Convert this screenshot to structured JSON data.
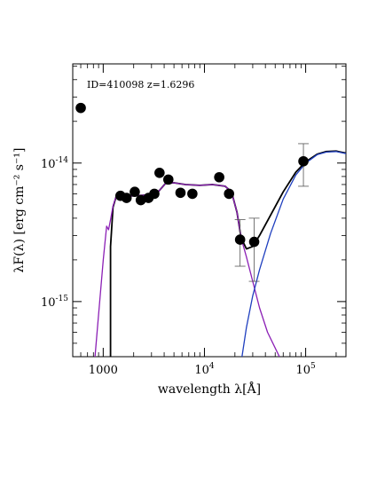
{
  "chart_data": {
    "type": "scatter",
    "annotation": "ID=410098 z=1.6296",
    "xlabel": "wavelength λ[Å]",
    "ylabel": "λF(λ) [erg cm⁻² s⁻¹]",
    "x_scale": "log",
    "y_scale": "log",
    "xlim": [
      500,
      250000
    ],
    "ylim": [
      4e-16,
      5.2e-14
    ],
    "grid": false,
    "x_ticks": [
      {
        "value": 1000,
        "label": "1000"
      },
      {
        "value": 10000,
        "label": "10",
        "exp": "4"
      },
      {
        "value": 100000,
        "label": "10",
        "exp": "5"
      }
    ],
    "y_ticks": [
      {
        "value": 1e-15,
        "label": "10",
        "exp": "-15"
      },
      {
        "value": 1e-14,
        "label": "10",
        "exp": "-14"
      }
    ],
    "points": [
      {
        "x": 600,
        "y": 2.5e-14
      },
      {
        "x": 1480,
        "y": 5.8e-15
      },
      {
        "x": 1700,
        "y": 5.6e-15
      },
      {
        "x": 2050,
        "y": 6.2e-15
      },
      {
        "x": 2350,
        "y": 5.4e-15
      },
      {
        "x": 2800,
        "y": 5.6e-15
      },
      {
        "x": 3200,
        "y": 6e-15
      },
      {
        "x": 3600,
        "y": 8.5e-15
      },
      {
        "x": 4400,
        "y": 7.6e-15
      },
      {
        "x": 5800,
        "y": 6.1e-15
      },
      {
        "x": 7600,
        "y": 6e-15
      },
      {
        "x": 14000,
        "y": 7.9e-15
      },
      {
        "x": 17500,
        "y": 6e-15
      },
      {
        "x": 22500,
        "y": 2.8e-15,
        "err_lo": 1.8e-15,
        "err_hi": 3.9e-15
      },
      {
        "x": 31000,
        "y": 2.7e-15,
        "err_lo": 1.4e-15,
        "err_hi": 4e-15
      },
      {
        "x": 95000,
        "y": 1.03e-14,
        "err_lo": 6.8e-15,
        "err_hi": 1.38e-14
      }
    ],
    "series": [
      {
        "color": "#000000",
        "x": [
          1180,
          1180,
          1250,
          1350,
          1500,
          2000,
          3000,
          3500,
          4100,
          5000,
          6500,
          9000,
          12000,
          16000,
          18500,
          21000,
          23000,
          26000,
          30000,
          35000,
          45000,
          60000,
          80000,
          100000,
          130000,
          160000,
          200000,
          250000
        ],
        "y": [
          4e-16,
          2.5e-15,
          4.8e-15,
          5.8e-15,
          5.7e-15,
          5.8e-15,
          5.9e-15,
          6.2e-15,
          7.1e-15,
          7.2e-15,
          7e-15,
          6.9e-15,
          7e-15,
          6.8e-15,
          6.2e-15,
          4.4e-15,
          2.9e-15,
          2.4e-15,
          2.5e-15,
          3e-15,
          4.2e-15,
          6.2e-15,
          8.6e-15,
          1.02e-14,
          1.16e-14,
          1.21e-14,
          1.22e-14,
          1.18e-14
        ]
      },
      {
        "color": "#8B1FB5",
        "x": [
          830,
          900,
          1000,
          1080,
          1130,
          1180,
          1250,
          1350,
          1500,
          2000,
          3000,
          3500,
          4100,
          5000,
          6500,
          9000,
          12000,
          16000,
          18500,
          21000,
          23000,
          26000,
          30000,
          35000,
          42000,
          55000
        ],
        "y": [
          4e-16,
          8e-16,
          2e-15,
          3.5e-15,
          3.3e-15,
          3.9e-15,
          4.9e-15,
          5.8e-15,
          5.7e-15,
          5.8e-15,
          5.9e-15,
          6.2e-15,
          7.1e-15,
          7.2e-15,
          7e-15,
          6.9e-15,
          7e-15,
          6.8e-15,
          6.2e-15,
          4.4e-15,
          2.9e-15,
          2.1e-15,
          1.4e-15,
          9e-16,
          6e-16,
          4e-16
        ]
      },
      {
        "color": "#1F3FBF",
        "x": [
          23500,
          26000,
          30000,
          35000,
          45000,
          60000,
          80000,
          100000,
          130000,
          160000,
          200000,
          250000
        ],
        "y": [
          4e-16,
          6.5e-16,
          1.1e-15,
          1.7e-15,
          3.1e-15,
          5.5e-15,
          8.2e-15,
          1e-14,
          1.15e-14,
          1.2e-14,
          1.21e-14,
          1.17e-14
        ]
      }
    ]
  }
}
